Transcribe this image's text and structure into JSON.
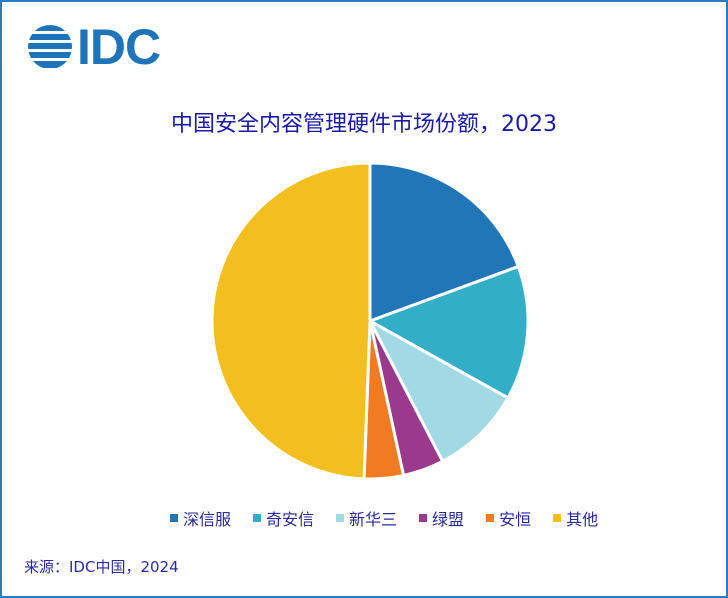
{
  "logo": {
    "text": "IDC",
    "color": "#1f73b9"
  },
  "title": "中国安全内容管理硬件市场份额，2023",
  "source": "来源：IDC中国，2024",
  "legend": [
    {
      "label": "深信服",
      "color": "#2176b8"
    },
    {
      "label": "奇安信",
      "color": "#33aec7"
    },
    {
      "label": "新华三",
      "color": "#a1d9e5"
    },
    {
      "label": "绿盟",
      "color": "#9b3a8c"
    },
    {
      "label": "安恒",
      "color": "#f07b22"
    },
    {
      "label": "其他",
      "color": "#f2bf1f"
    }
  ],
  "chart_data": {
    "type": "pie",
    "title": "中国安全内容管理硬件市场份额，2023",
    "categories": [
      "深信服",
      "奇安信",
      "新华三",
      "绿盟",
      "安恒",
      "其他"
    ],
    "values": [
      19.4,
      13.7,
      9.3,
      4.2,
      4.0,
      49.4
    ],
    "unit": "%",
    "colors": [
      "#2176b8",
      "#33aec7",
      "#a1d9e5",
      "#9b3a8c",
      "#f07b22",
      "#f2bf1f"
    ],
    "start_angle": "12 o'clock, clockwise",
    "legend_position": "bottom",
    "source": "来源：IDC中国，2024"
  }
}
